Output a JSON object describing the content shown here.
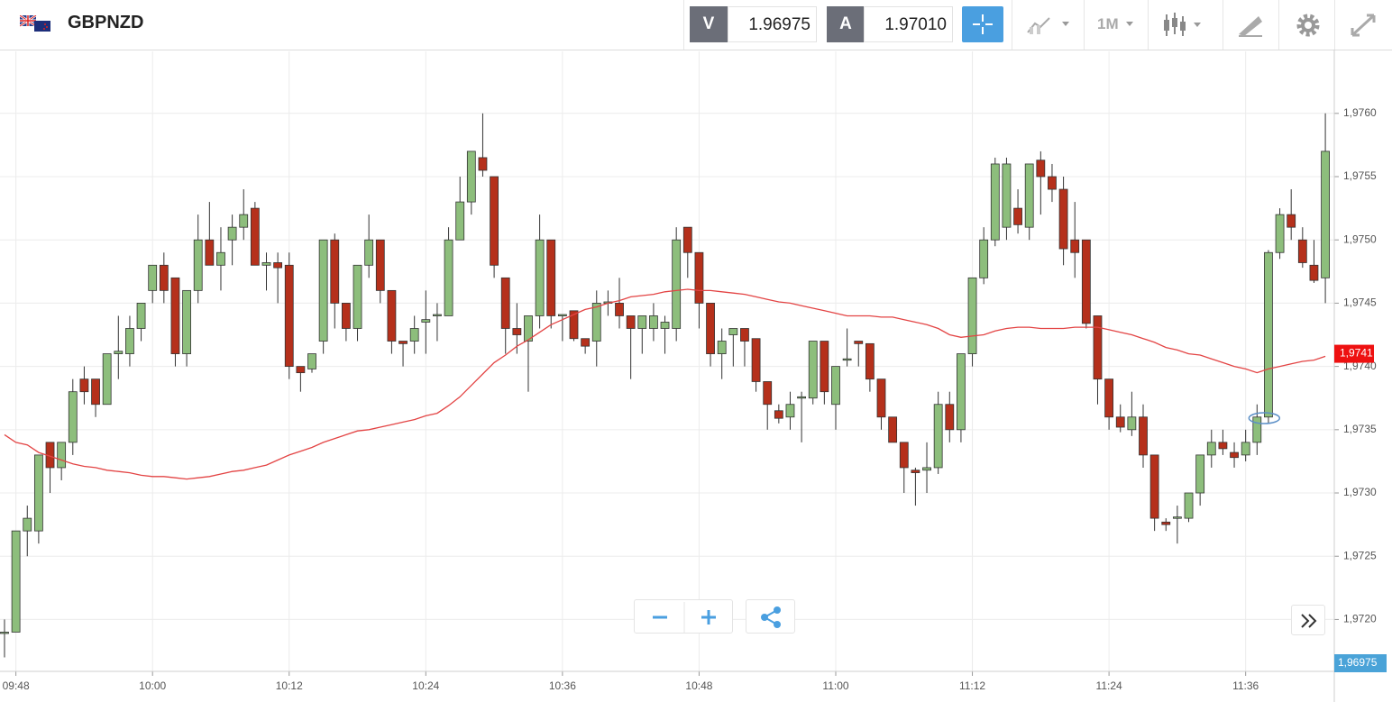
{
  "toolbar": {
    "symbol": "GBPNZD",
    "sell_label": "V",
    "sell_price": "1.96975",
    "buy_label": "A",
    "buy_price": "1.97010",
    "timeframe": "1M"
  },
  "chart_data": {
    "type": "candlestick",
    "categories": [
      null,
      "09:48",
      null,
      null,
      null,
      null,
      null,
      null,
      null,
      null,
      null,
      null,
      null,
      "10:00",
      null,
      null,
      null,
      null,
      null,
      null,
      null,
      null,
      null,
      null,
      null,
      "10:12",
      null,
      null,
      null,
      null,
      null,
      null,
      null,
      null,
      null,
      null,
      null,
      "10:24",
      null,
      null,
      null,
      null,
      null,
      null,
      null,
      null,
      null,
      null,
      null,
      "10:36",
      null,
      null,
      null,
      null,
      null,
      null,
      null,
      null,
      null,
      null,
      null,
      "10:48",
      null,
      null,
      null,
      null,
      null,
      null,
      null,
      null,
      null,
      null,
      null,
      "11:00",
      null,
      null,
      null,
      null,
      null,
      null,
      null,
      null,
      null,
      null,
      null,
      "11:12",
      null,
      null,
      null,
      null,
      null,
      null,
      null,
      null,
      null,
      null,
      null,
      "11:24",
      null,
      null,
      null,
      null,
      null,
      null,
      null,
      null,
      null,
      null,
      null,
      "11:36",
      null,
      null,
      null,
      null,
      null,
      null,
      null
    ],
    "open": [
      1.9719,
      1.9719,
      1.9727,
      1.9727,
      1.9734,
      1.9732,
      1.9734,
      1.9739,
      1.9739,
      1.9737,
      1.9741,
      1.9741,
      1.9743,
      1.9746,
      1.9748,
      1.9747,
      1.9741,
      1.9746,
      1.975,
      1.9748,
      1.975,
      1.9751,
      1.97525,
      1.9748,
      1.97482,
      1.9748,
      1.974,
      1.97398,
      1.9742,
      1.975,
      1.9745,
      1.9743,
      1.9748,
      1.975,
      1.9746,
      1.9742,
      1.9742,
      1.97435,
      1.9744,
      1.9744,
      1.975,
      1.9753,
      1.97565,
      1.9755,
      1.9747,
      1.9743,
      1.9742,
      1.9744,
      1.975,
      1.9744,
      1.97444,
      1.97422,
      1.9742,
      1.9745,
      1.9745,
      1.9744,
      1.9743,
      1.9743,
      1.9743,
      1.9743,
      1.9751,
      1.9749,
      1.9745,
      1.9741,
      1.97425,
      1.9743,
      1.97422,
      1.97388,
      1.97365,
      1.9736,
      1.97375,
      1.97375,
      1.9742,
      1.9737,
      1.97405,
      1.9742,
      1.97418,
      1.9739,
      1.9736,
      1.9734,
      1.97318,
      1.97318,
      1.9732,
      1.9737,
      1.9735,
      1.9741,
      1.9747,
      1.975,
      1.9751,
      1.97525,
      1.9751,
      1.97563,
      1.9755,
      1.9754,
      1.975,
      1.975,
      1.9744,
      1.9739,
      1.9736,
      1.9735,
      1.9736,
      1.9733,
      1.97277,
      1.9728,
      1.9728,
      1.973,
      1.9733,
      1.9734,
      1.97332,
      1.9733,
      1.9734,
      1.9736,
      1.9749,
      1.9752,
      1.975,
      1.9748,
      1.9747
    ],
    "high": [
      1.972,
      1.9727,
      1.9729,
      1.9733,
      1.9734,
      1.9734,
      1.9739,
      1.974,
      1.9739,
      1.9741,
      1.9744,
      1.9744,
      1.9745,
      1.9748,
      1.9749,
      1.9747,
      1.9746,
      1.9752,
      1.9753,
      1.9751,
      1.9752,
      1.9754,
      1.9753,
      1.9749,
      1.9749,
      1.9749,
      1.974,
      1.9741,
      1.975,
      1.97505,
      1.9745,
      1.9748,
      1.9752,
      1.975,
      1.9746,
      1.9742,
      1.9744,
      1.9746,
      1.9745,
      1.9751,
      1.9755,
      1.9757,
      1.976,
      1.9755,
      1.9747,
      1.9745,
      1.9744,
      1.9752,
      1.975,
      1.9744,
      1.97444,
      1.97422,
      1.9746,
      1.9746,
      1.9747,
      1.9744,
      1.9744,
      1.9745,
      1.9744,
      1.9751,
      1.9751,
      1.9749,
      1.9745,
      1.9743,
      1.9743,
      1.9743,
      1.97422,
      1.97388,
      1.9737,
      1.9738,
      1.9738,
      1.9742,
      1.9742,
      1.974,
      1.9743,
      1.9742,
      1.97418,
      1.9739,
      1.9736,
      1.9734,
      1.9732,
      1.9734,
      1.9738,
      1.9738,
      1.9741,
      1.9747,
      1.9751,
      1.97565,
      1.97565,
      1.9754,
      1.9756,
      1.9757,
      1.9756,
      1.9755,
      1.9753,
      1.975,
      1.9744,
      1.9739,
      1.9737,
      1.9738,
      1.9737,
      1.9733,
      1.9728,
      1.9729,
      1.973,
      1.9733,
      1.9735,
      1.9735,
      1.9734,
      1.9735,
      1.9737,
      1.97492,
      1.97525,
      1.9754,
      1.9751,
      1.975,
      1.976
    ],
    "low": [
      1.9717,
      1.9719,
      1.9725,
      1.9726,
      1.973,
      1.9731,
      1.9733,
      1.9737,
      1.9736,
      1.9737,
      1.9739,
      1.974,
      1.9742,
      1.9745,
      1.9745,
      1.974,
      1.974,
      1.9745,
      1.9748,
      1.9746,
      1.9748,
      1.975,
      1.9748,
      1.9746,
      1.9745,
      1.9739,
      1.9738,
      1.97395,
      1.9741,
      1.9743,
      1.9742,
      1.9742,
      1.9747,
      1.9745,
      1.9741,
      1.974,
      1.9741,
      1.9741,
      1.9742,
      1.9744,
      1.975,
      1.9752,
      1.9755,
      1.9747,
      1.9741,
      1.9741,
      1.9738,
      1.9743,
      1.9743,
      1.9742,
      1.9742,
      1.9741,
      1.974,
      1.9744,
      1.9743,
      1.9739,
      1.9741,
      1.9742,
      1.9741,
      1.9742,
      1.9747,
      1.9743,
      1.974,
      1.9739,
      1.974,
      1.974,
      1.9738,
      1.9735,
      1.97355,
      1.9735,
      1.9734,
      1.9737,
      1.9737,
      1.9735,
      1.974,
      1.974,
      1.9738,
      1.9735,
      1.9734,
      1.973,
      1.9729,
      1.973,
      1.97315,
      1.9734,
      1.9734,
      1.974,
      1.97465,
      1.97495,
      1.975,
      1.97505,
      1.975,
      1.9752,
      1.9753,
      1.9748,
      1.9747,
      1.9743,
      1.9737,
      1.9735,
      1.97348,
      1.97345,
      1.9732,
      1.9727,
      1.9727,
      1.9726,
      1.97277,
      1.9729,
      1.9732,
      1.9733,
      1.9732,
      1.97325,
      1.9733,
      1.97355,
      1.97485,
      1.975,
      1.97478,
      1.97466,
      1.9745
    ],
    "close": [
      1.9719,
      1.9727,
      1.9728,
      1.9733,
      1.9732,
      1.9734,
      1.9738,
      1.9738,
      1.9737,
      1.9741,
      1.97412,
      1.9743,
      1.9745,
      1.9748,
      1.9746,
      1.9741,
      1.9746,
      1.975,
      1.9748,
      1.9749,
      1.9751,
      1.9752,
      1.9748,
      1.97482,
      1.97478,
      1.974,
      1.97395,
      1.9741,
      1.975,
      1.9745,
      1.9743,
      1.9748,
      1.975,
      1.9746,
      1.9742,
      1.97418,
      1.9743,
      1.97437,
      1.97441,
      1.975,
      1.9753,
      1.9757,
      1.97555,
      1.9748,
      1.9743,
      1.97425,
      1.9744,
      1.975,
      1.9744,
      1.97441,
      1.97422,
      1.97416,
      1.9745,
      1.97451,
      1.9744,
      1.9743,
      1.9744,
      1.9744,
      1.97435,
      1.975,
      1.9749,
      1.9745,
      1.9741,
      1.9742,
      1.9743,
      1.9742,
      1.97388,
      1.9737,
      1.97359,
      1.9737,
      1.97376,
      1.9742,
      1.9738,
      1.974,
      1.97406,
      1.97418,
      1.9739,
      1.9736,
      1.9734,
      1.9732,
      1.97316,
      1.9732,
      1.9737,
      1.9735,
      1.9741,
      1.9747,
      1.975,
      1.9756,
      1.9756,
      1.97512,
      1.9756,
      1.9755,
      1.9754,
      1.97493,
      1.9749,
      1.97434,
      1.9739,
      1.9736,
      1.97352,
      1.9736,
      1.9733,
      1.9728,
      1.97275,
      1.97281,
      1.973,
      1.9733,
      1.9734,
      1.97335,
      1.97328,
      1.9734,
      1.9736,
      1.9749,
      1.9752,
      1.9751,
      1.97482,
      1.97468,
      1.9757
    ],
    "up_color": "#8dbe7c",
    "down_color": "#b5301b",
    "moving_average": {
      "color": "#e34444",
      "values": [
        1.97346,
        1.9734,
        1.97338,
        1.97332,
        1.97329,
        1.97326,
        1.97323,
        1.97321,
        1.9732,
        1.97318,
        1.97317,
        1.97316,
        1.97314,
        1.97313,
        1.97313,
        1.97312,
        1.97311,
        1.97312,
        1.97313,
        1.97315,
        1.97317,
        1.97318,
        1.9732,
        1.97322,
        1.97326,
        1.9733,
        1.97333,
        1.97336,
        1.9734,
        1.97343,
        1.97346,
        1.97349,
        1.9735,
        1.97352,
        1.97354,
        1.97356,
        1.97358,
        1.97361,
        1.97363,
        1.97369,
        1.97376,
        1.97385,
        1.97394,
        1.97403,
        1.97409,
        1.97416,
        1.97421,
        1.97427,
        1.97433,
        1.97437,
        1.97441,
        1.97445,
        1.97447,
        1.9745,
        1.97452,
        1.97455,
        1.97456,
        1.97457,
        1.97459,
        1.9746,
        1.97461,
        1.9746,
        1.9746,
        1.97459,
        1.97458,
        1.97457,
        1.97455,
        1.97453,
        1.97451,
        1.9745,
        1.97448,
        1.97446,
        1.97444,
        1.97442,
        1.9744,
        1.9744,
        1.9744,
        1.97439,
        1.97439,
        1.97437,
        1.97435,
        1.97433,
        1.9743,
        1.97425,
        1.97423,
        1.97424,
        1.97425,
        1.97428,
        1.9743,
        1.97431,
        1.97431,
        1.9743,
        1.9743,
        1.9743,
        1.97431,
        1.97431,
        1.97431,
        1.97429,
        1.97427,
        1.97425,
        1.97422,
        1.97419,
        1.97415,
        1.97413,
        1.9741,
        1.97409,
        1.97406,
        1.97403,
        1.974,
        1.97398,
        1.97395,
        1.97398,
        1.974,
        1.97402,
        1.97404,
        1.97405,
        1.97408
      ]
    },
    "ma_label": {
      "value": 1.9741,
      "label": "1,9741",
      "color": "#ee1111"
    },
    "bid_label": {
      "value": 1.96975,
      "label": "1,96975",
      "color": "#4aa3d8"
    },
    "ylim": [
      1.97159,
      1.97649
    ],
    "yticks": [
      {
        "value": 1.972,
        "label": "1,9720"
      },
      {
        "value": 1.9725,
        "label": "1,9725"
      },
      {
        "value": 1.973,
        "label": "1,9730"
      },
      {
        "value": 1.9735,
        "label": "1,9735"
      },
      {
        "value": 1.974,
        "label": "1,9740"
      },
      {
        "value": 1.9745,
        "label": "1,9745"
      },
      {
        "value": 1.975,
        "label": "1,9750"
      },
      {
        "value": 1.9755,
        "label": "1,9755"
      },
      {
        "value": 1.976,
        "label": "1,9760"
      }
    ],
    "grid": true
  }
}
